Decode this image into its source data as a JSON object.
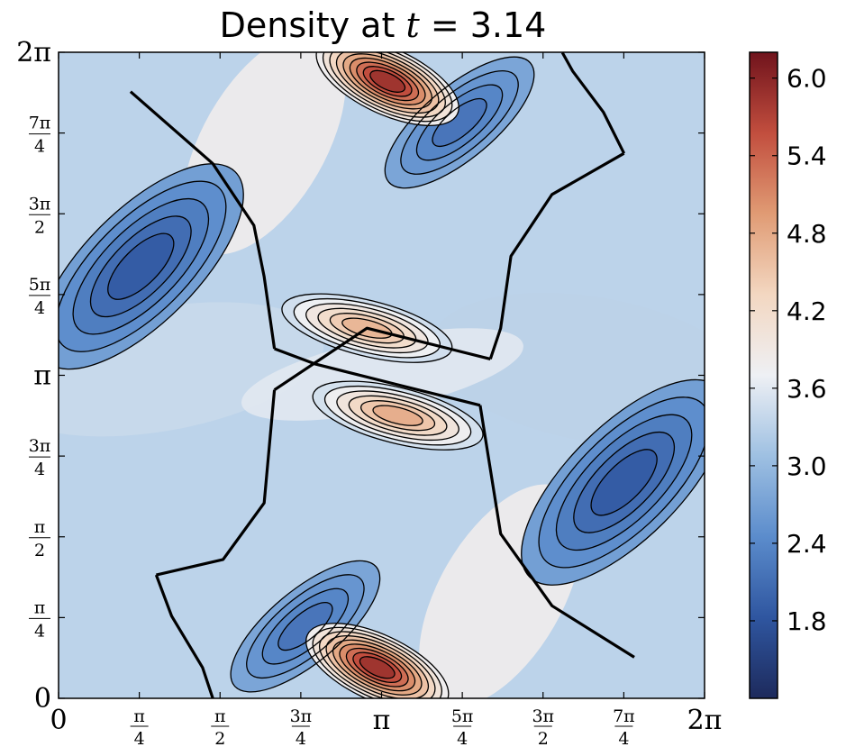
{
  "chart_data": {
    "type": "heatmap",
    "title_prefix": "Density at ",
    "title_var": "t",
    "title_eq": " = ",
    "title_value": "3.14",
    "xlabel": "",
    "ylabel": "",
    "xlim": [
      0,
      6.2832
    ],
    "ylim": [
      0,
      6.2832
    ],
    "x_ticks": [
      {
        "value": 0,
        "label": "0",
        "frac": false
      },
      {
        "value": 0.7854,
        "num": "π",
        "den": "4",
        "frac": true
      },
      {
        "value": 1.5708,
        "num": "π",
        "den": "2",
        "frac": true
      },
      {
        "value": 2.3562,
        "num": "3π",
        "den": "4",
        "frac": true
      },
      {
        "value": 3.1416,
        "label": "π",
        "frac": false
      },
      {
        "value": 3.927,
        "num": "5π",
        "den": "4",
        "frac": true
      },
      {
        "value": 4.7124,
        "num": "3π",
        "den": "2",
        "frac": true
      },
      {
        "value": 5.4978,
        "num": "7π",
        "den": "4",
        "frac": true
      },
      {
        "value": 6.2832,
        "label": "2π",
        "frac": false
      }
    ],
    "y_ticks": [
      {
        "value": 0,
        "label": "0",
        "frac": false
      },
      {
        "value": 0.7854,
        "num": "π",
        "den": "4",
        "frac": true
      },
      {
        "value": 1.5708,
        "num": "π",
        "den": "2",
        "frac": true
      },
      {
        "value": 2.3562,
        "num": "3π",
        "den": "4",
        "frac": true
      },
      {
        "value": 3.1416,
        "label": "π",
        "frac": false
      },
      {
        "value": 3.927,
        "num": "5π",
        "den": "4",
        "frac": true
      },
      {
        "value": 4.7124,
        "num": "3π",
        "den": "2",
        "frac": true
      },
      {
        "value": 5.4978,
        "num": "7π",
        "den": "4",
        "frac": true
      },
      {
        "value": 6.2832,
        "label": "2π",
        "frac": false
      }
    ],
    "colorbar": {
      "min": 1.2,
      "max": 6.2,
      "ticks": [
        {
          "value": 1.8,
          "label": "1.8"
        },
        {
          "value": 2.4,
          "label": "2.4"
        },
        {
          "value": 3.0,
          "label": "3.0"
        },
        {
          "value": 3.6,
          "label": "3.6"
        },
        {
          "value": 4.2,
          "label": "4.2"
        },
        {
          "value": 4.8,
          "label": "4.8"
        },
        {
          "value": 5.4,
          "label": "5.4"
        },
        {
          "value": 6.0,
          "label": "6.0"
        }
      ],
      "colormap": [
        "#1d2a5c",
        "#2f56a0",
        "#5b8ccc",
        "#9ec0e2",
        "#eef0f4",
        "#f3d7c1",
        "#e09b74",
        "#c24e3e",
        "#70131c"
      ]
    },
    "features": [
      {
        "name": "high-density-core-bottom",
        "x": 3.1,
        "y": 0.3,
        "value": 6.1
      },
      {
        "name": "high-density-core-top",
        "x": 3.2,
        "y": 6.0,
        "value": 6.1
      },
      {
        "name": "central-upper-blob",
        "x": 3.0,
        "y": 3.6,
        "value": 4.9
      },
      {
        "name": "central-lower-blob",
        "x": 3.3,
        "y": 2.75,
        "value": 5.0
      },
      {
        "name": "left-low-density-band",
        "x": 0.8,
        "y": 4.2,
        "value": 1.7
      },
      {
        "name": "right-low-density-band",
        "x": 5.5,
        "y": 2.1,
        "value": 1.7
      },
      {
        "name": "upper-mid-low-band",
        "x": 3.9,
        "y": 5.6,
        "value": 2.0
      },
      {
        "name": "lower-mid-low-band",
        "x": 2.4,
        "y": 0.7,
        "value": 2.0
      }
    ]
  }
}
